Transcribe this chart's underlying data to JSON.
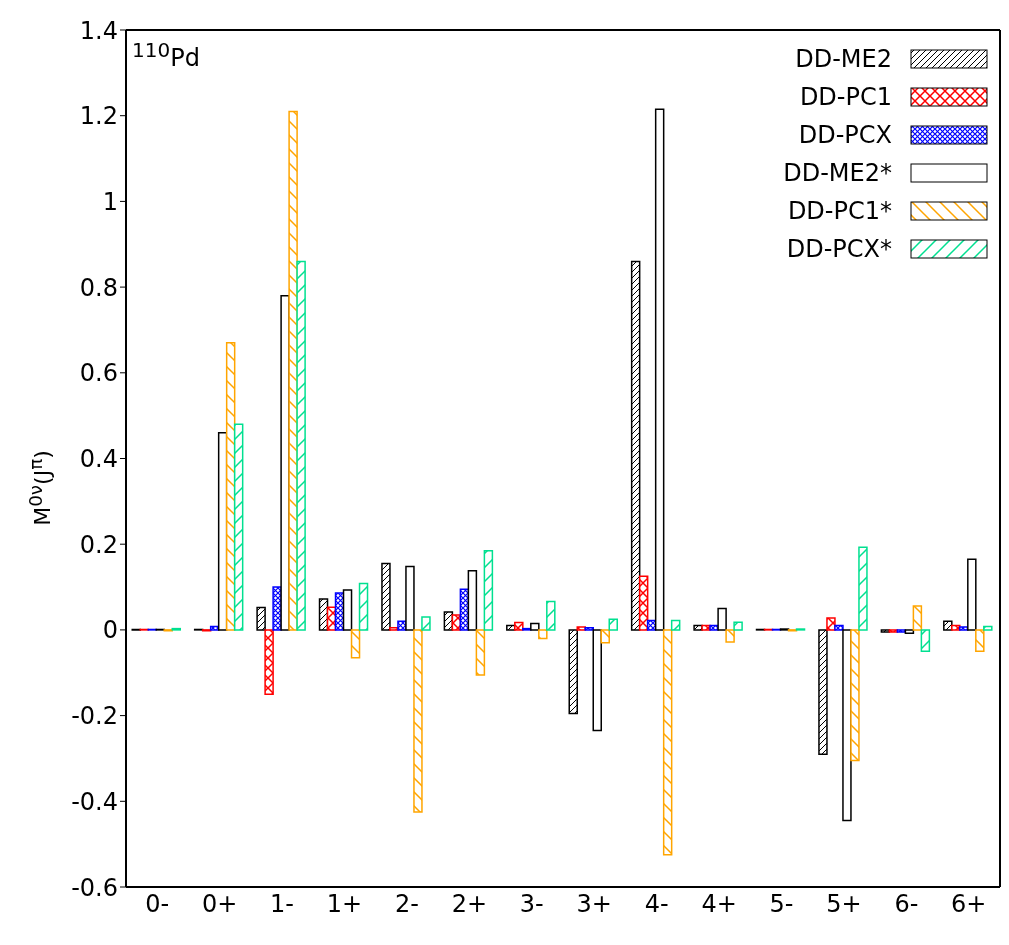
{
  "chart_data": {
    "type": "bar",
    "ylabel": "M$^{0ν}$(J$^{π}$)",
    "annotations": [
      "$^{110}$Pd"
    ],
    "categories": [
      "0-",
      "0+",
      "1-",
      "1+",
      "2-",
      "2+",
      "3-",
      "3+",
      "4-",
      "4+",
      "5-",
      "5+",
      "6-",
      "6+"
    ],
    "series": [
      {
        "name": "DD-ME2",
        "color": "#000000",
        "values": [
          0.001,
          0.001,
          0.052,
          0.072,
          0.155,
          0.042,
          0.01,
          -0.195,
          0.86,
          0.01,
          0.001,
          -0.29,
          -0.005,
          0.02
        ]
      },
      {
        "name": "DD-PC1",
        "color": "#ff0000",
        "values": [
          0.001,
          -0.002,
          -0.15,
          0.053,
          0.005,
          0.035,
          0.017,
          0.007,
          0.125,
          0.01,
          0.001,
          0.028,
          -0.005,
          0.01
        ]
      },
      {
        "name": "DD-PCX",
        "color": "#0000ff",
        "values": [
          0.001,
          0.008,
          0.1,
          0.086,
          0.02,
          0.095,
          0.003,
          0.005,
          0.022,
          0.01,
          0.001,
          0.01,
          -0.005,
          0.007
        ]
      },
      {
        "name": "DD-ME2*",
        "color": "#000000",
        "values": [
          0.001,
          0.46,
          0.78,
          0.093,
          0.148,
          0.138,
          0.015,
          -0.235,
          1.215,
          0.05,
          0.002,
          -0.445,
          -0.008,
          0.165
        ]
      },
      {
        "name": "DD-PC1*",
        "color": "#ffa500",
        "values": [
          -0.002,
          0.67,
          1.21,
          -0.065,
          -0.425,
          -0.105,
          -0.02,
          -0.03,
          -0.525,
          -0.028,
          -0.002,
          -0.305,
          0.056,
          -0.05
        ]
      },
      {
        "name": "DD-PCX*",
        "color": "#00e090",
        "values": [
          0.003,
          0.48,
          0.86,
          0.108,
          0.03,
          0.185,
          0.066,
          0.025,
          0.022,
          0.018,
          0.002,
          0.193,
          -0.05,
          0.008
        ]
      }
    ],
    "ylim": [
      -0.6,
      1.4
    ],
    "yticks": [
      -0.6,
      -0.4,
      -0.2,
      0,
      0.2,
      0.4,
      0.6,
      0.8,
      1,
      1.2,
      1.4
    ],
    "legend": "top right"
  }
}
